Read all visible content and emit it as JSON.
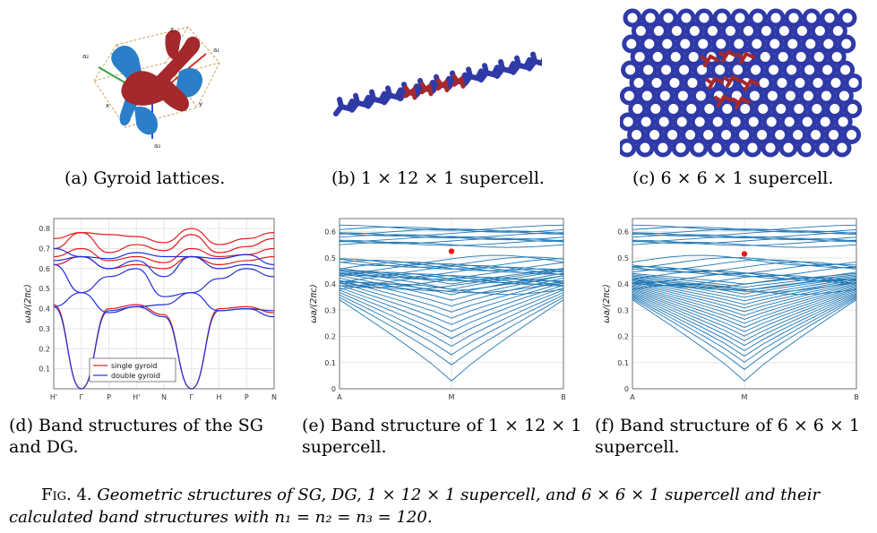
{
  "panels": {
    "a": {
      "caption": "(a) Gyroid lattices.",
      "axis_labels": [
        "a₁",
        "a₂",
        "a₃",
        "x",
        "y",
        "z"
      ]
    },
    "b": {
      "caption": "(b) 1 × 12 × 1 supercell."
    },
    "c": {
      "caption": "(c) 6 × 6 × 1 supercell."
    },
    "d": {
      "caption_line1": "(d) Band structures of the SG",
      "caption_line2": "and DG."
    },
    "e": {
      "caption_line1": "(e) Band structure of 1 × 12 × 1",
      "caption_line2": "supercell."
    },
    "f": {
      "caption_line1": "(f) Band structure of 6 × 6 × 1",
      "caption_line2": "supercell."
    }
  },
  "figure_caption": {
    "label": "Fig. 4.",
    "text": "Geometric structures of SG, DG, 1 × 12 × 1 supercell, and 6 × 6 × 1 supercell and their calculated band structures with n₁ = n₂ = n₃ = 120."
  },
  "colors": {
    "red": "#e31a1c",
    "blue": "#1f2fd8",
    "steel": "#1f77b4",
    "lattice": "#2f3aa8",
    "dark_red": "#a5282c"
  },
  "chart_data": [
    {
      "type": "line",
      "panel": "d",
      "ylabel": "ωa/(2πc)",
      "ylim": [
        0,
        0.85
      ],
      "yticks": [
        "0.1",
        "0.2",
        "0.3",
        "0.4",
        "0.5",
        "0.6",
        "0.7",
        "0.8"
      ],
      "categories": [
        "H'",
        "Γ",
        "P",
        "H'",
        "N",
        "Γ",
        "H",
        "P",
        "N"
      ],
      "legend": "bottom-center",
      "series": [
        {
          "name": "single gyroid",
          "color": "#e31a1c",
          "bands": [
            [
              0.42,
              0.0,
              0.4,
              0.42,
              0.37,
              0.0,
              0.4,
              0.41,
              0.38
            ],
            [
              0.75,
              0.78,
              0.77,
              0.76,
              0.73,
              0.8,
              0.72,
              0.75,
              0.78
            ],
            [
              0.7,
              0.78,
              0.68,
              0.72,
              0.69,
              0.77,
              0.68,
              0.71,
              0.75
            ],
            [
              0.66,
              0.7,
              0.64,
              0.66,
              0.63,
              0.7,
              0.66,
              0.67,
              0.7
            ],
            [
              0.62,
              0.66,
              0.6,
              0.62,
              0.6,
              0.66,
              0.62,
              0.64,
              0.66
            ]
          ]
        },
        {
          "name": "double gyroid",
          "color": "#1f2fd8",
          "bands": [
            [
              0.41,
              0.0,
              0.39,
              0.41,
              0.36,
              0.0,
              0.39,
              0.4,
              0.36
            ],
            [
              0.41,
              0.48,
              0.38,
              0.41,
              0.42,
              0.48,
              0.39,
              0.4,
              0.39
            ],
            [
              0.62,
              0.48,
              0.56,
              0.6,
              0.46,
              0.48,
              0.55,
              0.6,
              0.56
            ],
            [
              0.64,
              0.66,
              0.6,
              0.64,
              0.56,
              0.66,
              0.6,
              0.62,
              0.6
            ],
            [
              0.7,
              0.66,
              0.65,
              0.68,
              0.66,
              0.66,
              0.65,
              0.67,
              0.62
            ]
          ]
        }
      ]
    },
    {
      "type": "line",
      "panel": "e",
      "ylabel": "ωa/(2πc)",
      "ylim": [
        0,
        0.65
      ],
      "yticks": [
        "0",
        "0.1",
        "0.2",
        "0.3",
        "0.4",
        "0.5",
        "0.6"
      ],
      "categories": [
        "A",
        "M",
        "B"
      ],
      "highlight": {
        "x": "M",
        "y": 0.525,
        "color": "#e31a1c"
      }
    },
    {
      "type": "line",
      "panel": "f",
      "ylabel": "ωa/(2πc)",
      "ylim": [
        0,
        0.65
      ],
      "yticks": [
        "0",
        "0.1",
        "0.2",
        "0.3",
        "0.4",
        "0.5",
        "0.6"
      ],
      "categories": [
        "A",
        "M",
        "B"
      ],
      "highlight": {
        "x": "M",
        "y": 0.515,
        "color": "#e31a1c"
      }
    }
  ]
}
